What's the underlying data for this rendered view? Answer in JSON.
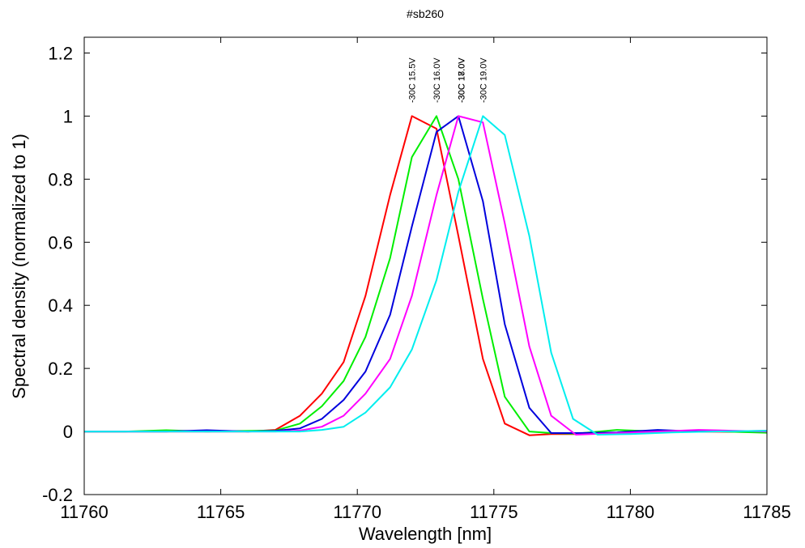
{
  "chart_data": {
    "type": "line",
    "title": "#sb260",
    "xlabel": "Wavelength [nm]",
    "ylabel": "Spectral density (normalized to 1)",
    "xlim": [
      11760,
      11785
    ],
    "ylim": [
      -0.2,
      1.25
    ],
    "xticks": [
      11760,
      11765,
      11770,
      11775,
      11780,
      11785
    ],
    "xtick_labels": [
      "11760",
      "11765",
      "11770",
      "11775",
      "11780",
      "11785"
    ],
    "yticks": [
      -0.2,
      0,
      0.2,
      0.4,
      0.6,
      0.8,
      1,
      1.2
    ],
    "ytick_labels": [
      "-0.2",
      "0",
      "0.2",
      "0.4",
      "0.6",
      "0.8",
      "1",
      "1.2"
    ],
    "grid": false,
    "legend": "none",
    "peak_labels": [
      {
        "text": "-30C 15.5V",
        "x": 11772.0
      },
      {
        "text": "-30C 16.0V",
        "x": 11772.9
      },
      {
        "text": "-30C 17.0V",
        "x": 11773.8
      },
      {
        "text": "-30C 18.0V",
        "x": 11773.8
      },
      {
        "text": "-30C 19.0V",
        "x": 11774.6
      }
    ],
    "series": [
      {
        "color": "#ff0000",
        "x": [
          11760,
          11761.5,
          11763,
          11764.5,
          11766,
          11767,
          11767.9,
          11768.7,
          11769.5,
          11770.3,
          11771.2,
          11772.0,
          11772.9,
          11773.7,
          11774.6,
          11775.4,
          11776.3,
          11777.1,
          11778,
          11780,
          11782,
          11785
        ],
        "y": [
          0,
          0,
          0,
          0,
          0,
          0.005,
          0.05,
          0.12,
          0.22,
          0.43,
          0.75,
          1.0,
          0.96,
          0.62,
          0.23,
          0.025,
          -0.012,
          -0.008,
          -0.008,
          -0.003,
          0,
          -0.002
        ]
      },
      {
        "color": "#00ee00",
        "x": [
          11760,
          11761.5,
          11763,
          11764.5,
          11766,
          11767,
          11767.9,
          11768.7,
          11769.5,
          11770.3,
          11771.2,
          11772.0,
          11772.9,
          11773.7,
          11774.6,
          11775.4,
          11776.3,
          11777.1,
          11778,
          11779.5,
          11781,
          11782.5,
          11785
        ],
        "y": [
          0,
          0,
          0.004,
          0,
          0.002,
          0.003,
          0.025,
          0.08,
          0.16,
          0.3,
          0.55,
          0.87,
          1.0,
          0.8,
          0.42,
          0.11,
          0.0,
          -0.005,
          -0.007,
          0.005,
          0,
          0.002,
          -0.004
        ]
      },
      {
        "color": "#0000dd",
        "x": [
          11760,
          11761.5,
          11763,
          11764.5,
          11766,
          11767,
          11767.9,
          11768.7,
          11769.5,
          11770.3,
          11771.2,
          11772.0,
          11772.9,
          11773.7,
          11774.6,
          11775.4,
          11776.3,
          11777.1,
          11778,
          11779.5,
          11781,
          11782.5,
          11785
        ],
        "y": [
          0,
          0,
          0,
          0.004,
          0,
          0.002,
          0.01,
          0.04,
          0.1,
          0.19,
          0.37,
          0.65,
          0.95,
          1.0,
          0.73,
          0.34,
          0.075,
          -0.005,
          -0.005,
          -0.003,
          0.005,
          0,
          0.002
        ]
      },
      {
        "color": "#ff00ff",
        "x": [
          11760,
          11761.5,
          11763,
          11764.5,
          11766,
          11767,
          11767.9,
          11768.7,
          11769.5,
          11770.3,
          11771.2,
          11772.0,
          11772.9,
          11773.7,
          11774.6,
          11775.4,
          11776.3,
          11777.1,
          11778,
          11779.5,
          11781,
          11782.5,
          11785
        ],
        "y": [
          0,
          0,
          0,
          0,
          0,
          0,
          0.003,
          0.015,
          0.05,
          0.12,
          0.23,
          0.43,
          0.75,
          1.0,
          0.98,
          0.66,
          0.27,
          0.05,
          -0.01,
          -0.005,
          0,
          0.005,
          0
        ]
      },
      {
        "color": "#00eeee",
        "x": [
          11760,
          11761.5,
          11763,
          11764.5,
          11766,
          11767,
          11767.9,
          11768.7,
          11769.5,
          11770.3,
          11771.2,
          11772.0,
          11772.9,
          11773.7,
          11774.6,
          11775.4,
          11776.3,
          11777.1,
          11777.9,
          11778.8,
          11780,
          11781.5,
          11783,
          11785
        ],
        "y": [
          0,
          0,
          0,
          0,
          0,
          0,
          0,
          0.005,
          0.015,
          0.06,
          0.14,
          0.26,
          0.48,
          0.76,
          1.0,
          0.94,
          0.62,
          0.25,
          0.04,
          -0.01,
          -0.008,
          -0.003,
          0,
          0.002
        ]
      }
    ]
  }
}
